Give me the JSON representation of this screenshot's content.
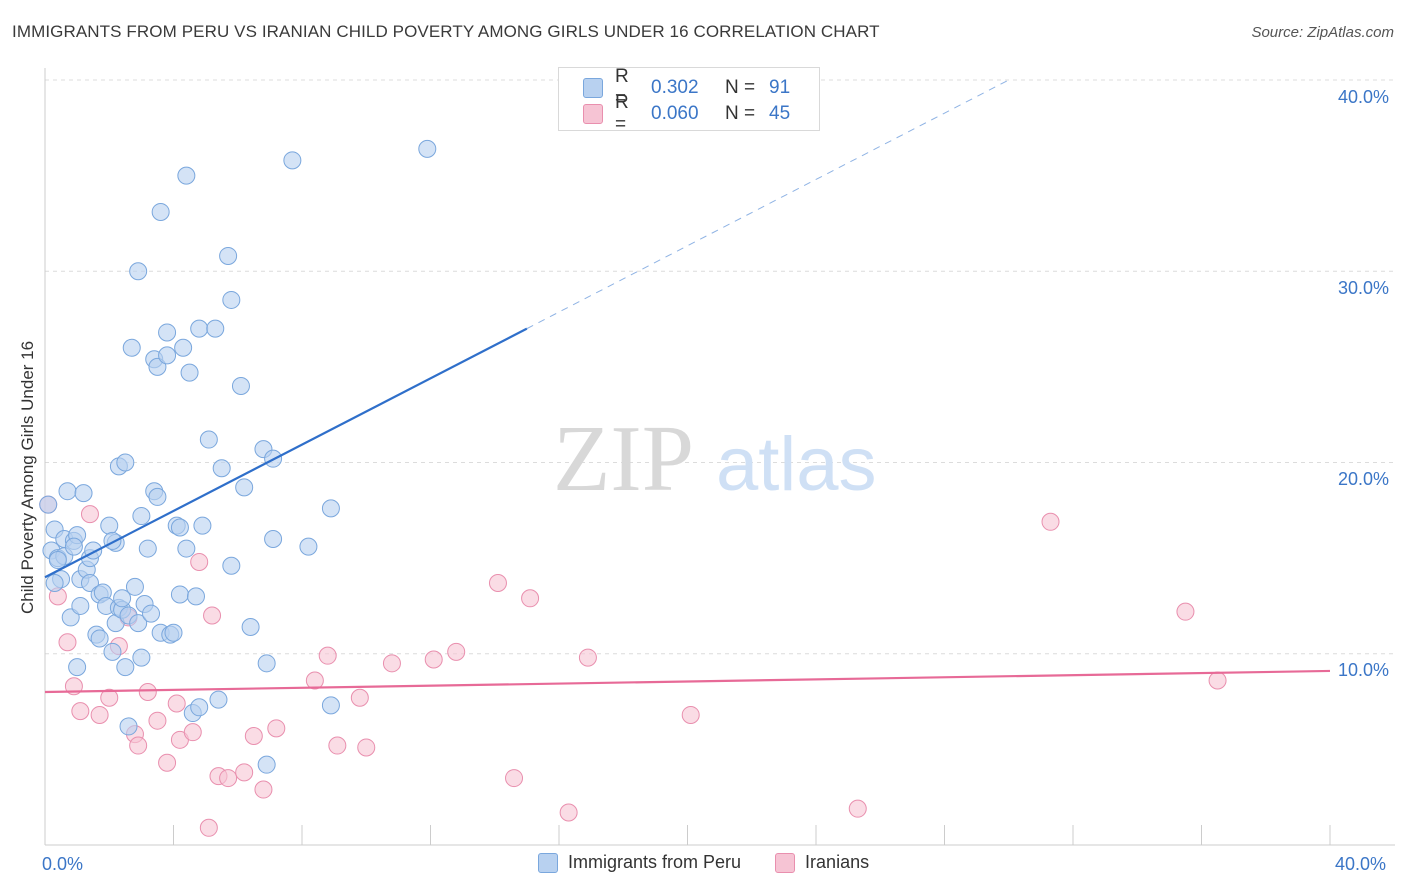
{
  "title": "IMMIGRANTS FROM PERU VS IRANIAN CHILD POVERTY AMONG GIRLS UNDER 16 CORRELATION CHART",
  "source": "Source: ZipAtlas.com",
  "watermark": {
    "zip": "ZIP",
    "atlas": "atlas"
  },
  "legend_top": {
    "rows": [
      {
        "r_label": "R =",
        "r_value": "0.302",
        "n_label": "N =",
        "n_value": "91"
      },
      {
        "r_label": "R =",
        "r_value": "0.060",
        "n_label": "N =",
        "n_value": "45"
      }
    ]
  },
  "legend_bottom": [
    "Immigrants from Peru",
    "Iranians"
  ],
  "x_tick_labels": {
    "left": "0.0%",
    "right": "40.0%"
  },
  "y_tick_labels": [
    "10.0%",
    "20.0%",
    "30.0%",
    "40.0%"
  ],
  "colors": {
    "blue_fill": "#b8d1f0",
    "blue_stroke": "#7aa7dd",
    "blue_line": "#2f6fca",
    "pink_fill": "#f6c4d4",
    "pink_stroke": "#e98fae",
    "pink_line": "#e76a97",
    "grid": "#dcdcdc",
    "tick_text": "#3b76c7"
  },
  "chart_data": {
    "type": "scatter",
    "title": "IMMIGRANTS FROM PERU VS IRANIAN CHILD POVERTY AMONG GIRLS UNDER 16 CORRELATION CHART",
    "xlabel": "",
    "ylabel": "Child Poverty Among Girls Under 16",
    "xlim": [
      0,
      40
    ],
    "ylim": [
      0,
      40
    ],
    "grid": true,
    "legend_position": "bottom",
    "series": [
      {
        "name": "Immigrants from Peru",
        "color": "#7aa7dd",
        "trend": {
          "x": [
            0,
            15
          ],
          "y": [
            14.0,
            27.0
          ],
          "dashed_to": [
            30,
            40.0
          ]
        },
        "points": [
          [
            0.1,
            17.8
          ],
          [
            0.2,
            15.4
          ],
          [
            0.3,
            16.5
          ],
          [
            0.4,
            15.0
          ],
          [
            0.5,
            13.9
          ],
          [
            0.6,
            15.1
          ],
          [
            0.6,
            16.0
          ],
          [
            0.7,
            18.5
          ],
          [
            0.8,
            11.9
          ],
          [
            0.9,
            15.9
          ],
          [
            1.0,
            16.2
          ],
          [
            1.0,
            9.3
          ],
          [
            1.1,
            13.9
          ],
          [
            1.1,
            12.5
          ],
          [
            1.2,
            18.4
          ],
          [
            1.3,
            14.4
          ],
          [
            1.4,
            15.0
          ],
          [
            1.4,
            13.7
          ],
          [
            1.6,
            11.0
          ],
          [
            1.7,
            10.8
          ],
          [
            1.7,
            13.1
          ],
          [
            1.8,
            13.2
          ],
          [
            1.9,
            12.5
          ],
          [
            2.0,
            16.7
          ],
          [
            2.1,
            10.1
          ],
          [
            2.2,
            15.8
          ],
          [
            2.2,
            11.6
          ],
          [
            2.3,
            12.4
          ],
          [
            2.3,
            19.8
          ],
          [
            2.4,
            12.3
          ],
          [
            2.4,
            12.9
          ],
          [
            2.5,
            20.0
          ],
          [
            2.5,
            9.3
          ],
          [
            2.6,
            12.0
          ],
          [
            2.6,
            6.2
          ],
          [
            2.7,
            26.0
          ],
          [
            2.8,
            13.5
          ],
          [
            2.9,
            30.0
          ],
          [
            2.9,
            11.6
          ],
          [
            3.0,
            9.8
          ],
          [
            3.0,
            17.2
          ],
          [
            3.1,
            12.6
          ],
          [
            3.2,
            15.5
          ],
          [
            3.3,
            12.1
          ],
          [
            3.4,
            25.4
          ],
          [
            3.4,
            18.5
          ],
          [
            3.5,
            18.2
          ],
          [
            3.5,
            25.0
          ],
          [
            3.6,
            11.1
          ],
          [
            3.6,
            33.1
          ],
          [
            3.8,
            26.8
          ],
          [
            3.8,
            25.6
          ],
          [
            3.9,
            11.0
          ],
          [
            4.0,
            11.1
          ],
          [
            4.1,
            16.7
          ],
          [
            4.2,
            13.1
          ],
          [
            4.2,
            16.6
          ],
          [
            4.3,
            26.0
          ],
          [
            4.4,
            15.5
          ],
          [
            4.4,
            35.0
          ],
          [
            4.5,
            24.7
          ],
          [
            4.6,
            6.9
          ],
          [
            4.7,
            13.0
          ],
          [
            4.8,
            27.0
          ],
          [
            4.8,
            7.2
          ],
          [
            4.9,
            16.7
          ],
          [
            5.1,
            21.2
          ],
          [
            5.3,
            27.0
          ],
          [
            5.4,
            7.6
          ],
          [
            5.5,
            19.7
          ],
          [
            5.7,
            30.8
          ],
          [
            5.8,
            14.6
          ],
          [
            5.8,
            28.5
          ],
          [
            6.1,
            24.0
          ],
          [
            6.2,
            18.7
          ],
          [
            6.4,
            11.4
          ],
          [
            6.8,
            20.7
          ],
          [
            6.9,
            4.2
          ],
          [
            6.9,
            9.5
          ],
          [
            7.1,
            20.2
          ],
          [
            7.1,
            16.0
          ],
          [
            7.7,
            35.8
          ],
          [
            8.2,
            15.6
          ],
          [
            8.9,
            17.6
          ],
          [
            8.9,
            7.3
          ],
          [
            11.9,
            36.4
          ],
          [
            0.3,
            13.7
          ],
          [
            0.4,
            14.9
          ],
          [
            0.9,
            15.6
          ],
          [
            2.1,
            15.9
          ],
          [
            1.5,
            15.4
          ]
        ]
      },
      {
        "name": "Iranians",
        "color": "#e98fae",
        "trend": {
          "x": [
            0,
            40
          ],
          "y": [
            8.0,
            9.1
          ]
        },
        "points": [
          [
            0.1,
            17.8
          ],
          [
            0.4,
            13.0
          ],
          [
            0.7,
            10.6
          ],
          [
            0.9,
            8.3
          ],
          [
            1.1,
            7.0
          ],
          [
            1.4,
            17.3
          ],
          [
            1.7,
            6.8
          ],
          [
            2.0,
            7.7
          ],
          [
            2.3,
            10.4
          ],
          [
            2.6,
            11.9
          ],
          [
            2.8,
            5.8
          ],
          [
            2.9,
            5.2
          ],
          [
            3.2,
            8.0
          ],
          [
            3.5,
            6.5
          ],
          [
            3.8,
            4.3
          ],
          [
            4.1,
            7.4
          ],
          [
            4.2,
            5.5
          ],
          [
            4.6,
            5.9
          ],
          [
            4.8,
            14.8
          ],
          [
            5.1,
            0.9
          ],
          [
            5.2,
            12.0
          ],
          [
            5.4,
            3.6
          ],
          [
            5.7,
            3.5
          ],
          [
            6.2,
            3.8
          ],
          [
            6.5,
            5.7
          ],
          [
            6.8,
            2.9
          ],
          [
            7.2,
            6.1
          ],
          [
            8.4,
            8.6
          ],
          [
            8.8,
            9.9
          ],
          [
            9.1,
            5.2
          ],
          [
            9.8,
            7.7
          ],
          [
            10.0,
            5.1
          ],
          [
            10.8,
            9.5
          ],
          [
            12.1,
            9.7
          ],
          [
            12.8,
            10.1
          ],
          [
            14.1,
            13.7
          ],
          [
            14.6,
            3.5
          ],
          [
            15.1,
            12.9
          ],
          [
            16.3,
            1.7
          ],
          [
            16.9,
            9.8
          ],
          [
            20.1,
            6.8
          ],
          [
            25.3,
            1.9
          ],
          [
            31.3,
            16.9
          ],
          [
            35.5,
            12.2
          ],
          [
            36.5,
            8.6
          ]
        ]
      }
    ]
  }
}
